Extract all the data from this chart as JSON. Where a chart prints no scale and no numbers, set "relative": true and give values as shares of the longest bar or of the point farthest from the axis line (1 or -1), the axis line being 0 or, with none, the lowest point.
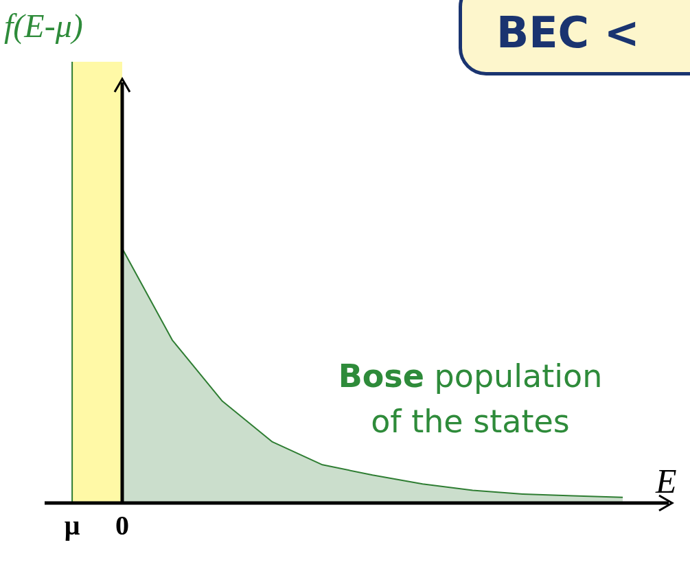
{
  "chart_data": {
    "type": "area",
    "title": "BEC <",
    "xlabel": "E",
    "annotations": [
      "Bose population of the states",
      "f(E-μ)"
    ],
    "categories": [
      "μ",
      "0",
      null,
      null,
      null,
      null,
      null,
      null,
      null,
      null,
      null,
      null
    ],
    "series": [
      {
        "color": "#2e7d32",
        "values": [
          null,
          1,
          0.64,
          0.4,
          0.24,
          0.15,
          0.11,
          0.075,
          0.05,
          0.035,
          0.028,
          0.022
        ]
      }
    ],
    "relative": true,
    "bands": [
      {
        "axis": "x",
        "from": "μ",
        "to": "0",
        "color": "#fff9a6"
      }
    ],
    "ref_lines": [
      {
        "axis": "x",
        "value": "μ",
        "color": "#2e7d32"
      }
    ],
    "grid": false,
    "legend": false,
    "marker": "none"
  }
}
